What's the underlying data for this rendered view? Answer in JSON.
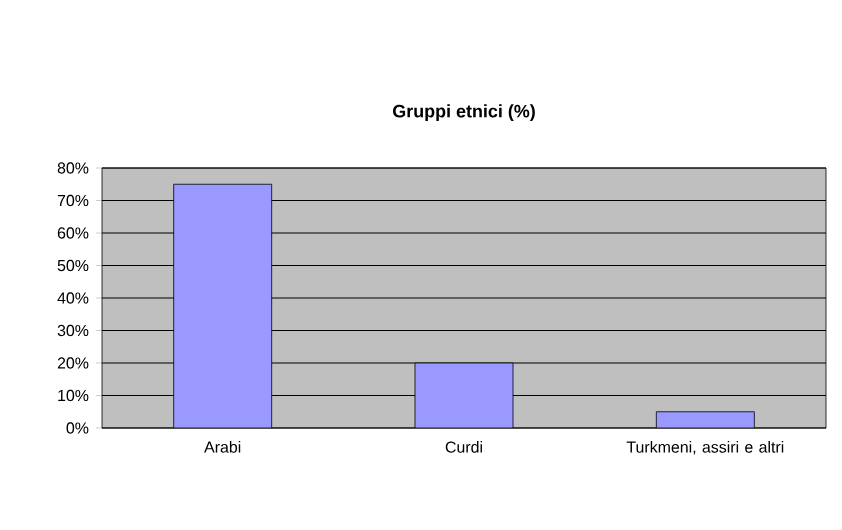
{
  "chart_data": {
    "type": "bar",
    "title": "Gruppi etnici (%)",
    "categories": [
      "Arabi",
      "Curdi",
      "Turkmeni, assiri e altri"
    ],
    "values": [
      75,
      20,
      5
    ],
    "color": "#9999ff",
    "ylim": [
      0,
      80
    ],
    "yticks": [
      {
        "value": 0,
        "label": "0%"
      },
      {
        "value": 10,
        "label": "10%"
      },
      {
        "value": 20,
        "label": "20%"
      },
      {
        "value": 30,
        "label": "30%"
      },
      {
        "value": 40,
        "label": "40%"
      },
      {
        "value": 50,
        "label": "50%"
      },
      {
        "value": 60,
        "label": "60%"
      },
      {
        "value": 70,
        "label": "70%"
      },
      {
        "value": 80,
        "label": "80%"
      }
    ],
    "grid": "y"
  }
}
